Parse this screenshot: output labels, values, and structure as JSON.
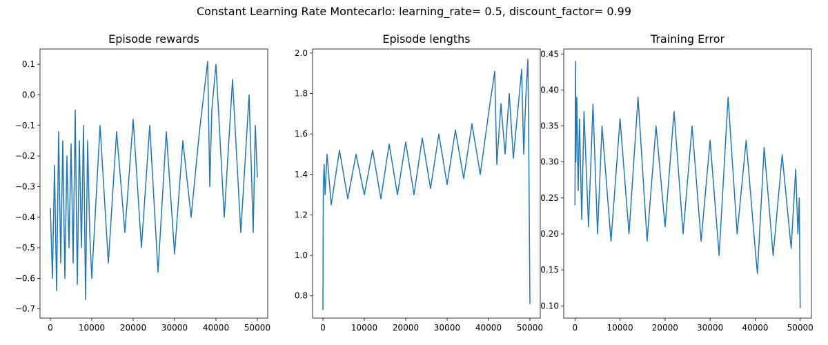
{
  "suptitle": "Constant Learning Rate Montecarlo: learning_rate= 0.5, discount_factor= 0.99",
  "line_color": "#1f77b4",
  "chart_data": [
    {
      "type": "line",
      "title": "Episode rewards",
      "xlabel": "",
      "ylabel": "",
      "xlim": [
        -2500,
        52500
      ],
      "ylim": [
        -0.73,
        0.15
      ],
      "xticks": [
        0,
        10000,
        20000,
        30000,
        40000,
        50000
      ],
      "yticks": [
        -0.7,
        -0.6,
        -0.5,
        -0.4,
        -0.3,
        -0.2,
        -0.1,
        0.0,
        0.1
      ],
      "yticklabels": [
        "−0.7",
        "−0.6",
        "−0.5",
        "−0.4",
        "−0.3",
        "−0.2",
        "−0.1",
        "0.0",
        "0.1"
      ],
      "series": [
        {
          "x": [
            0,
            500,
            1000,
            1500,
            2000,
            2500,
            3000,
            3500,
            4000,
            4500,
            5000,
            5500,
            6000,
            6500,
            7000,
            7500,
            8000,
            8500,
            9000,
            9500,
            10000,
            12000,
            14000,
            16000,
            18000,
            20000,
            22000,
            24000,
            26000,
            28000,
            30000,
            32000,
            34000,
            36000,
            38000,
            38500,
            39000,
            40000,
            42000,
            44000,
            46000,
            48000,
            49000,
            49500,
            50000
          ],
          "y": [
            -0.37,
            -0.6,
            -0.23,
            -0.64,
            -0.12,
            -0.55,
            -0.15,
            -0.6,
            -0.2,
            -0.5,
            -0.16,
            -0.55,
            -0.05,
            -0.62,
            -0.15,
            -0.5,
            -0.1,
            -0.67,
            -0.15,
            -0.45,
            -0.6,
            -0.1,
            -0.55,
            -0.12,
            -0.45,
            -0.08,
            -0.5,
            -0.1,
            -0.58,
            -0.12,
            -0.52,
            -0.15,
            -0.4,
            -0.12,
            0.11,
            -0.3,
            -0.05,
            0.1,
            -0.4,
            0.05,
            -0.45,
            0.0,
            -0.45,
            -0.1,
            -0.27
          ]
        }
      ]
    },
    {
      "type": "line",
      "title": "Episode lengths",
      "xlabel": "",
      "ylabel": "",
      "xlim": [
        -2500,
        52500
      ],
      "ylim": [
        0.69,
        2.02
      ],
      "xticks": [
        0,
        10000,
        20000,
        30000,
        40000,
        50000
      ],
      "yticks": [
        0.8,
        1.0,
        1.2,
        1.4,
        1.6,
        1.8,
        2.0
      ],
      "yticklabels": [
        "0.8",
        "1.0",
        "1.2",
        "1.4",
        "1.6",
        "1.8",
        "2.0"
      ],
      "series": [
        {
          "x": [
            0,
            100,
            300,
            500,
            1000,
            2000,
            4000,
            6000,
            8000,
            10000,
            12000,
            14000,
            16000,
            18000,
            20000,
            22000,
            24000,
            26000,
            28000,
            30000,
            32000,
            34000,
            36000,
            38000,
            40000,
            41500,
            42000,
            43000,
            44000,
            45000,
            46000,
            47000,
            48000,
            48500,
            49000,
            49500,
            49700,
            50000
          ],
          "y": [
            0.73,
            1.35,
            1.45,
            1.3,
            1.5,
            1.25,
            1.52,
            1.28,
            1.5,
            1.3,
            1.52,
            1.28,
            1.55,
            1.3,
            1.56,
            1.3,
            1.58,
            1.33,
            1.6,
            1.35,
            1.62,
            1.38,
            1.65,
            1.4,
            1.7,
            1.91,
            1.45,
            1.75,
            1.5,
            1.8,
            1.48,
            1.7,
            1.92,
            1.5,
            1.78,
            1.97,
            1.6,
            0.76
          ]
        }
      ]
    },
    {
      "type": "line",
      "title": "Training Error",
      "xlabel": "",
      "ylabel": "",
      "xlim": [
        -2500,
        52500
      ],
      "ylim": [
        0.083,
        0.457
      ],
      "xticks": [
        0,
        10000,
        20000,
        30000,
        40000,
        50000
      ],
      "yticks": [
        0.1,
        0.15,
        0.2,
        0.25,
        0.3,
        0.35,
        0.4,
        0.45
      ],
      "yticklabels": [
        "0.10",
        "0.15",
        "0.20",
        "0.25",
        "0.30",
        "0.35",
        "0.40",
        "0.45"
      ],
      "series": [
        {
          "x": [
            0,
            100,
            200,
            400,
            700,
            1000,
            1500,
            2000,
            3000,
            4000,
            5000,
            6000,
            8000,
            10000,
            12000,
            14000,
            16000,
            18000,
            20000,
            22000,
            24000,
            26000,
            28000,
            30000,
            32000,
            34000,
            36000,
            38000,
            40000,
            40500,
            42000,
            44000,
            46000,
            48000,
            49000,
            49500,
            49800,
            50000
          ],
          "y": [
            0.24,
            0.44,
            0.3,
            0.39,
            0.26,
            0.36,
            0.22,
            0.37,
            0.21,
            0.38,
            0.2,
            0.35,
            0.19,
            0.36,
            0.2,
            0.39,
            0.19,
            0.35,
            0.21,
            0.37,
            0.2,
            0.35,
            0.19,
            0.33,
            0.17,
            0.39,
            0.2,
            0.33,
            0.18,
            0.145,
            0.32,
            0.17,
            0.31,
            0.18,
            0.29,
            0.2,
            0.25,
            0.097
          ]
        }
      ]
    }
  ]
}
